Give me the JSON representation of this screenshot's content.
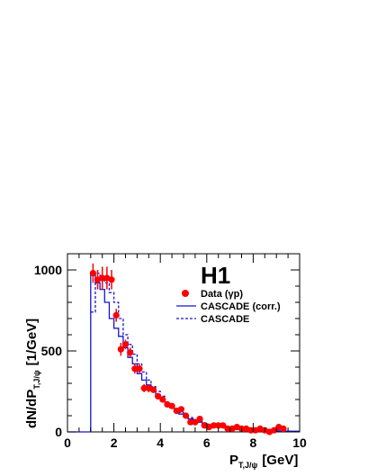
{
  "chart_data": {
    "type": "scatter",
    "title": "",
    "experiment_label": "H1",
    "xlabel": {
      "main": "P",
      "sub": "T,J/ψ",
      "unit": "[GeV]"
    },
    "ylabel": {
      "main": "dN/dP",
      "sub": "T,J/ψ",
      "unit": "[1/GeV]"
    },
    "xlim": [
      0,
      10
    ],
    "ylim": [
      0,
      1100
    ],
    "xticks": [
      0,
      2,
      4,
      6,
      8,
      10
    ],
    "yticks": [
      0,
      500,
      1000
    ],
    "grid": false,
    "legend_placement": "top-right",
    "series": [
      {
        "name": "Data (γp)",
        "style": "points",
        "color": "#ff0000",
        "x": [
          1.1,
          1.3,
          1.5,
          1.7,
          1.9,
          2.1,
          2.3,
          2.5,
          2.7,
          2.9,
          3.1,
          3.3,
          3.5,
          3.7,
          3.9,
          4.1,
          4.3,
          4.5,
          4.7,
          4.9,
          5.1,
          5.3,
          5.5,
          5.7,
          5.9,
          6.1,
          6.3,
          6.5,
          6.7,
          6.9,
          7.1,
          7.3,
          7.5,
          7.7,
          7.9,
          8.1,
          8.3,
          8.5,
          8.7,
          8.9,
          9.1,
          9.3
        ],
        "y": [
          980,
          940,
          950,
          950,
          940,
          720,
          510,
          540,
          490,
          390,
          390,
          270,
          270,
          260,
          220,
          200,
          170,
          160,
          130,
          140,
          100,
          60,
          60,
          80,
          40,
          30,
          40,
          40,
          40,
          20,
          20,
          30,
          20,
          20,
          10,
          10,
          20,
          10,
          0,
          10,
          30,
          20
        ],
        "yerr": [
          60,
          60,
          70,
          70,
          60,
          40,
          40,
          30,
          30,
          30,
          30,
          25,
          25,
          20,
          20,
          20,
          20,
          15,
          15,
          15,
          15,
          12,
          10,
          10,
          10,
          10,
          10,
          10,
          10,
          8,
          8,
          8,
          8,
          8,
          6,
          6,
          6,
          6,
          6,
          6,
          6,
          6
        ]
      },
      {
        "name": "CASCADE (corr.)",
        "style": "solid-step",
        "color": "#1515d0",
        "bin_edges": [
          0,
          1,
          1.2,
          1.4,
          1.6,
          1.8,
          2,
          2.2,
          2.4,
          2.6,
          2.8,
          3,
          3.2,
          3.4,
          3.6,
          3.8,
          4,
          4.2,
          4.4,
          4.6,
          4.8,
          5,
          5.2,
          5.4,
          5.6,
          5.8,
          6,
          6.2,
          6.4,
          6.6,
          6.8,
          7,
          7.2,
          7.4,
          7.6,
          7.8,
          8,
          8.2,
          8.4,
          8.6,
          8.8,
          9,
          9.2,
          9.4,
          9.6,
          9.8,
          10
        ],
        "values": [
          0,
          980,
          920,
          880,
          800,
          700,
          640,
          590,
          520,
          460,
          420,
          360,
          320,
          290,
          260,
          220,
          200,
          170,
          150,
          130,
          110,
          95,
          80,
          70,
          60,
          50,
          44,
          40,
          36,
          32,
          28,
          24,
          20,
          18,
          15,
          14,
          12,
          10,
          9,
          8,
          7,
          6,
          5,
          5,
          4,
          4
        ]
      },
      {
        "name": "CASCADE",
        "style": "dashed-step",
        "color": "#1515d0",
        "bin_edges": [
          1,
          1.2,
          1.4,
          1.6,
          1.8,
          2,
          2.2,
          2.4,
          2.6,
          2.8,
          3,
          3.2,
          3.4,
          3.6,
          3.8,
          4,
          4.2,
          4.4,
          4.6,
          4.8,
          5,
          5.2,
          5.4,
          5.6,
          5.8,
          6,
          6.2,
          6.4,
          6.6,
          6.8,
          7,
          7.2,
          7.4,
          7.6,
          7.8,
          8,
          8.2,
          8.4,
          8.6,
          8.8,
          9,
          9.2,
          9.4,
          9.6,
          9.8,
          10
        ],
        "values": [
          740,
          980,
          960,
          920,
          860,
          800,
          700,
          600,
          540,
          480,
          420,
          370,
          320,
          280,
          250,
          220,
          180,
          160,
          140,
          120,
          100,
          88,
          76,
          66,
          56,
          48,
          42,
          36,
          32,
          28,
          24,
          20,
          18,
          16,
          14,
          12,
          10,
          9,
          8,
          7,
          6,
          5,
          5,
          4,
          4
        ]
      }
    ]
  }
}
